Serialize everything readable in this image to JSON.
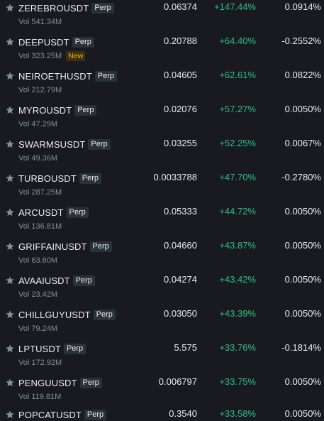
{
  "colors": {
    "background": "#181a20",
    "positive": "#2ebd85",
    "text_primary": "#eaecef",
    "text_secondary": "#848e9c",
    "badge_bg": "#2b3139",
    "new_badge": "#f0b90b"
  },
  "icons": {
    "favorite": "star-icon"
  },
  "rows": [
    {
      "symbol": "ZEREBROUSDT",
      "badge": "Perp",
      "volume": "Vol 541.34M",
      "tag": "",
      "price": "0.06374",
      "change": "+147.44%",
      "funding": "0.0914%"
    },
    {
      "symbol": "DEEPUSDT",
      "badge": "Perp",
      "volume": "Vol 323.25M",
      "tag": "New",
      "price": "0.20788",
      "change": "+64.40%",
      "funding": "-0.2552%"
    },
    {
      "symbol": "NEIROETHUSDT",
      "badge": "Perp",
      "volume": "Vol 212.79M",
      "tag": "",
      "price": "0.04605",
      "change": "+62.61%",
      "funding": "0.0822%"
    },
    {
      "symbol": "MYROUSDT",
      "badge": "Perp",
      "volume": "Vol 47.29M",
      "tag": "",
      "price": "0.02076",
      "change": "+57.27%",
      "funding": "0.0050%"
    },
    {
      "symbol": "SWARMSUSDT",
      "badge": "Perp",
      "volume": "Vol 49.36M",
      "tag": "",
      "price": "0.03255",
      "change": "+52.25%",
      "funding": "0.0067%"
    },
    {
      "symbol": "TURBOUSDT",
      "badge": "Perp",
      "volume": "Vol 287.25M",
      "tag": "",
      "price": "0.0033788",
      "change": "+47.70%",
      "funding": "-0.2780%"
    },
    {
      "symbol": "ARCUSDT",
      "badge": "Perp",
      "volume": "Vol 136.81M",
      "tag": "",
      "price": "0.05333",
      "change": "+44.72%",
      "funding": "0.0050%"
    },
    {
      "symbol": "GRIFFAINUSDT",
      "badge": "Perp",
      "volume": "Vol 63.60M",
      "tag": "",
      "price": "0.04660",
      "change": "+43.87%",
      "funding": "0.0050%"
    },
    {
      "symbol": "AVAAIUSDT",
      "badge": "Perp",
      "volume": "Vol 23.42M",
      "tag": "",
      "price": "0.04274",
      "change": "+43.42%",
      "funding": "0.0050%"
    },
    {
      "symbol": "CHILLGUYUSDT",
      "badge": "Perp",
      "volume": "Vol 79.24M",
      "tag": "",
      "price": "0.03050",
      "change": "+43.39%",
      "funding": "0.0050%"
    },
    {
      "symbol": "LPTUSDT",
      "badge": "Perp",
      "volume": "Vol 172.92M",
      "tag": "",
      "price": "5.575",
      "change": "+33.76%",
      "funding": "-0.1814%"
    },
    {
      "symbol": "PENGUUSDT",
      "badge": "Perp",
      "volume": "Vol 119.81M",
      "tag": "",
      "price": "0.006797",
      "change": "+33.75%",
      "funding": "0.0050%"
    },
    {
      "symbol": "POPCATUSDT",
      "badge": "Perp",
      "volume": "",
      "tag": "",
      "price": "0.3540",
      "change": "+33.58%",
      "funding": "0.0050%"
    }
  ]
}
